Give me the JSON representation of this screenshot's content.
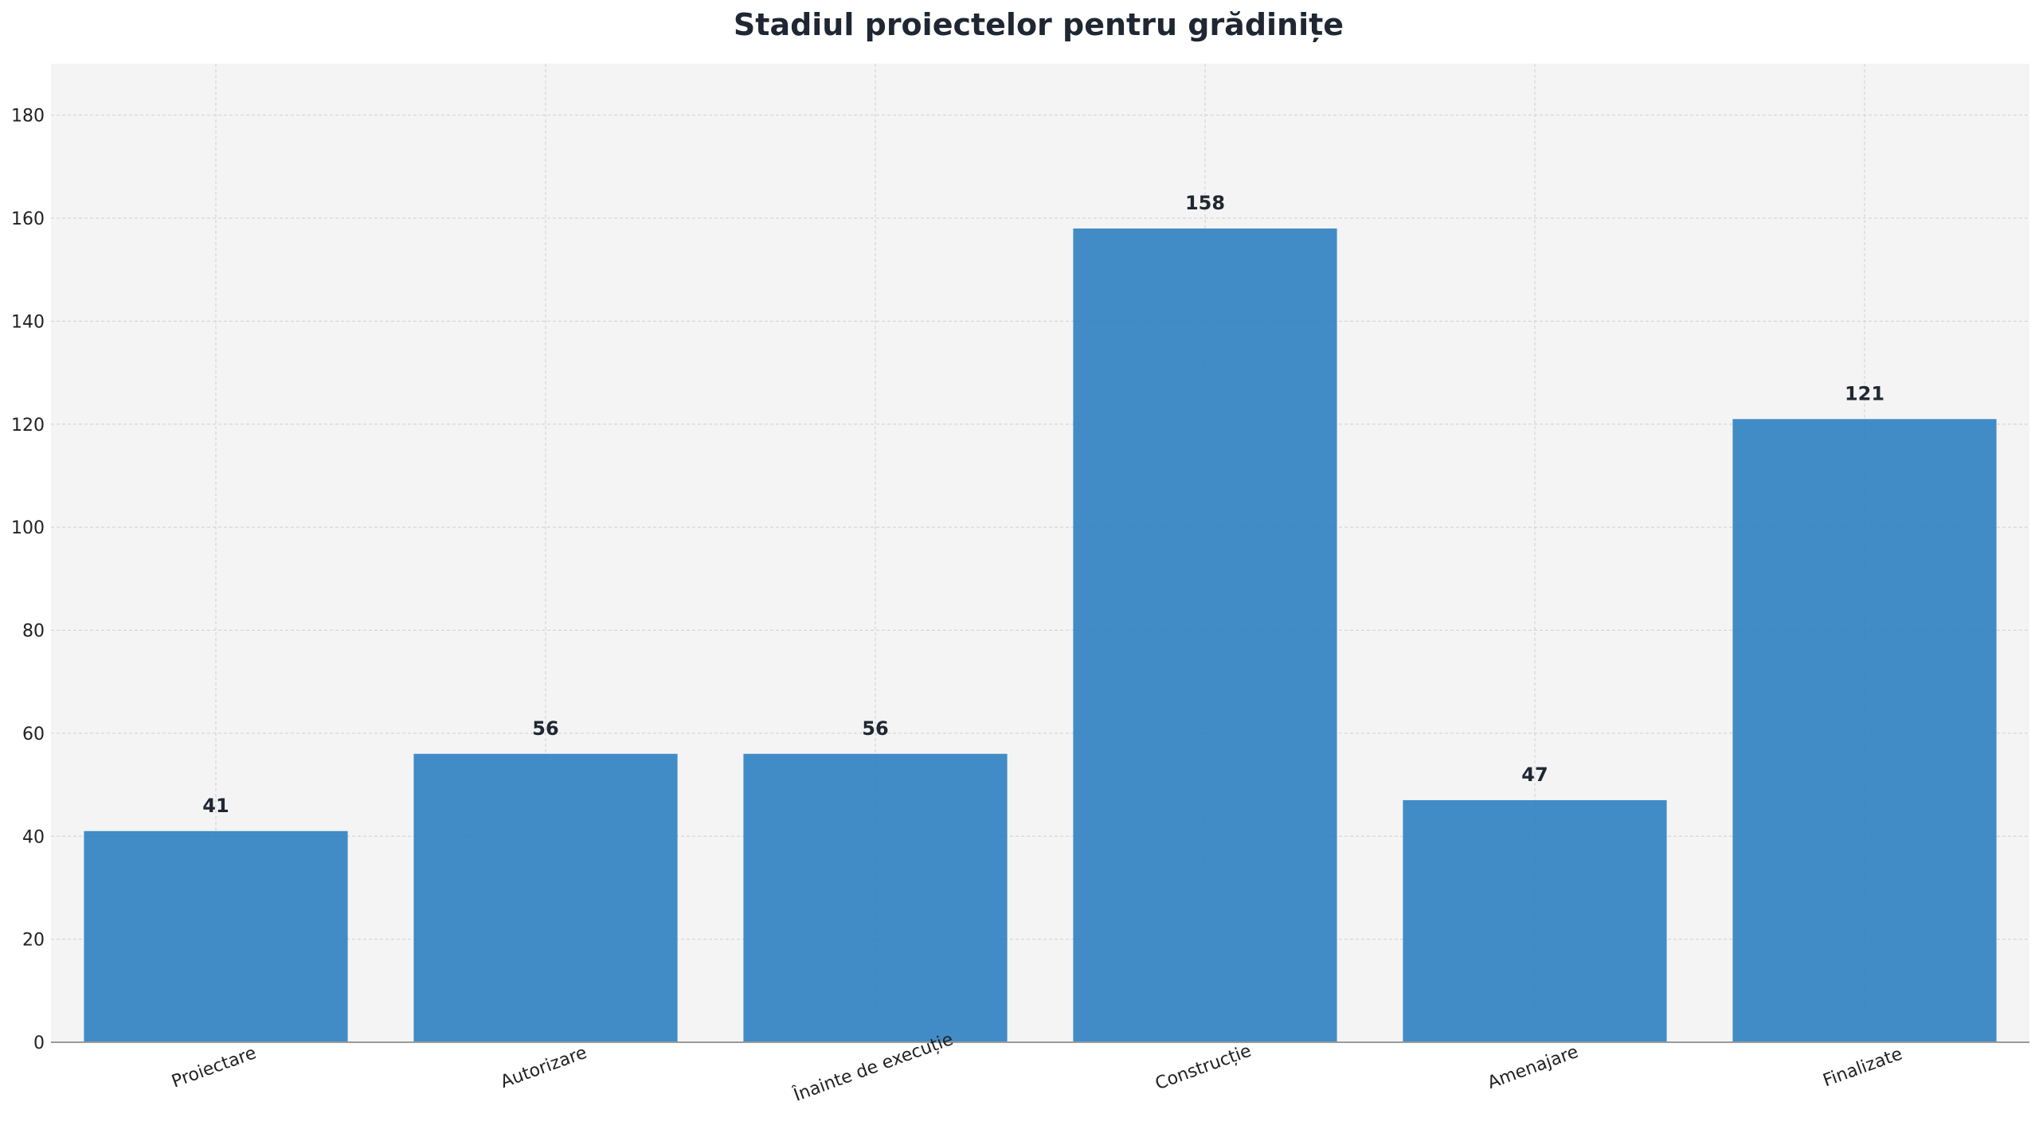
{
  "chart_data": {
    "type": "bar",
    "title": "Stadiul proiectelor pentru grădinițe",
    "xlabel": "",
    "ylabel": "",
    "categories": [
      "Proiectare",
      "Autorizare",
      "Înainte de execuție",
      "Construcție",
      "Amenajare",
      "Finalizate"
    ],
    "values": [
      41,
      56,
      56,
      158,
      47,
      121
    ],
    "ylim": [
      0,
      190
    ],
    "yticks": [
      0,
      20,
      40,
      60,
      80,
      100,
      120,
      140,
      160,
      180
    ],
    "grid": true,
    "legend": "none",
    "colors": {
      "bar": "#3182c1",
      "plot_background": "#f4f4f4",
      "grid": "#cfcfcf",
      "axis": "#9a9a9a",
      "title": "#1f2733"
    }
  }
}
